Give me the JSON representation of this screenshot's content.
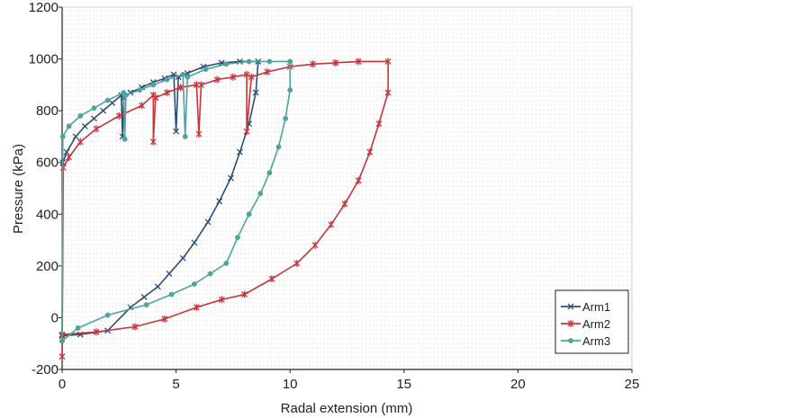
{
  "chart_data": {
    "type": "line",
    "xlabel": "Radal extension (mm)",
    "ylabel": "Pressure (kPa)",
    "xlim": [
      0,
      25
    ],
    "ylim": [
      -200,
      1200
    ],
    "xticks": [
      "0",
      "5",
      "10",
      "15",
      "20",
      "25"
    ],
    "yticks": [
      "-200",
      "0",
      "200",
      "400",
      "600",
      "800",
      "1000",
      "1200"
    ],
    "grid": "dotted",
    "legend_position": "bottom-right",
    "series": [
      {
        "name": "Arm1",
        "color": "#2c4f7a",
        "marker": "x",
        "points": [
          [
            0,
            -70
          ],
          [
            0.03,
            600
          ],
          [
            0.2,
            640
          ],
          [
            0.6,
            700
          ],
          [
            1.0,
            740
          ],
          [
            1.4,
            770
          ],
          [
            1.8,
            800
          ],
          [
            2.2,
            830
          ],
          [
            2.6,
            860
          ],
          [
            2.65,
            700
          ],
          [
            2.7,
            850
          ],
          [
            3.0,
            870
          ],
          [
            3.5,
            890
          ],
          [
            4.0,
            910
          ],
          [
            4.5,
            925
          ],
          [
            4.9,
            940
          ],
          [
            5.0,
            720
          ],
          [
            5.1,
            930
          ],
          [
            5.5,
            945
          ],
          [
            6.2,
            970
          ],
          [
            7.0,
            985
          ],
          [
            7.8,
            990
          ],
          [
            8.6,
            990
          ],
          [
            8.5,
            870
          ],
          [
            8.2,
            750
          ],
          [
            7.8,
            640
          ],
          [
            7.4,
            540
          ],
          [
            6.9,
            450
          ],
          [
            6.4,
            370
          ],
          [
            5.8,
            290
          ],
          [
            5.3,
            230
          ],
          [
            4.7,
            170
          ],
          [
            4.2,
            120
          ],
          [
            3.6,
            80
          ],
          [
            3.0,
            40
          ],
          [
            2.0,
            -50
          ],
          [
            0.8,
            -65
          ],
          [
            0,
            -70
          ]
        ]
      },
      {
        "name": "Arm2",
        "color": "#c8343b",
        "marker": "star",
        "points": [
          [
            0,
            -150
          ],
          [
            0.05,
            580
          ],
          [
            0.3,
            620
          ],
          [
            0.8,
            680
          ],
          [
            1.5,
            730
          ],
          [
            2.5,
            780
          ],
          [
            3.5,
            820
          ],
          [
            4.0,
            860
          ],
          [
            4.0,
            680
          ],
          [
            4.1,
            850
          ],
          [
            4.6,
            870
          ],
          [
            5.2,
            890
          ],
          [
            5.9,
            900
          ],
          [
            6.0,
            710
          ],
          [
            6.1,
            900
          ],
          [
            6.8,
            920
          ],
          [
            7.5,
            930
          ],
          [
            8.1,
            940
          ],
          [
            8.1,
            720
          ],
          [
            8.3,
            930
          ],
          [
            9.0,
            950
          ],
          [
            10.0,
            970
          ],
          [
            11.0,
            980
          ],
          [
            12.0,
            985
          ],
          [
            13.0,
            990
          ],
          [
            14.3,
            990
          ],
          [
            14.3,
            870
          ],
          [
            13.9,
            750
          ],
          [
            13.5,
            640
          ],
          [
            13.0,
            530
          ],
          [
            12.4,
            440
          ],
          [
            11.8,
            360
          ],
          [
            11.1,
            280
          ],
          [
            10.3,
            210
          ],
          [
            9.2,
            150
          ],
          [
            8.0,
            90
          ],
          [
            7.0,
            70
          ],
          [
            5.9,
            40
          ],
          [
            4.5,
            -5
          ],
          [
            3.2,
            -35
          ],
          [
            1.5,
            -55
          ],
          [
            0,
            -65
          ]
        ]
      },
      {
        "name": "Arm3",
        "color": "#4ea49a",
        "marker": "circle",
        "points": [
          [
            0,
            -90
          ],
          [
            0.03,
            700
          ],
          [
            0.3,
            740
          ],
          [
            0.8,
            780
          ],
          [
            1.4,
            810
          ],
          [
            2.0,
            840
          ],
          [
            2.7,
            870
          ],
          [
            2.75,
            690
          ],
          [
            2.8,
            860
          ],
          [
            3.4,
            880
          ],
          [
            4.0,
            900
          ],
          [
            4.6,
            920
          ],
          [
            5.3,
            940
          ],
          [
            5.4,
            700
          ],
          [
            5.5,
            930
          ],
          [
            6.3,
            960
          ],
          [
            7.2,
            980
          ],
          [
            8.2,
            990
          ],
          [
            9.1,
            990
          ],
          [
            10.0,
            990
          ],
          [
            10.0,
            880
          ],
          [
            9.8,
            770
          ],
          [
            9.5,
            660
          ],
          [
            9.1,
            560
          ],
          [
            8.7,
            480
          ],
          [
            8.2,
            400
          ],
          [
            7.7,
            310
          ],
          [
            7.2,
            210
          ],
          [
            6.5,
            170
          ],
          [
            5.8,
            130
          ],
          [
            4.8,
            90
          ],
          [
            3.7,
            50
          ],
          [
            2.0,
            10
          ],
          [
            0.7,
            -40
          ],
          [
            0,
            -90
          ]
        ]
      }
    ]
  }
}
